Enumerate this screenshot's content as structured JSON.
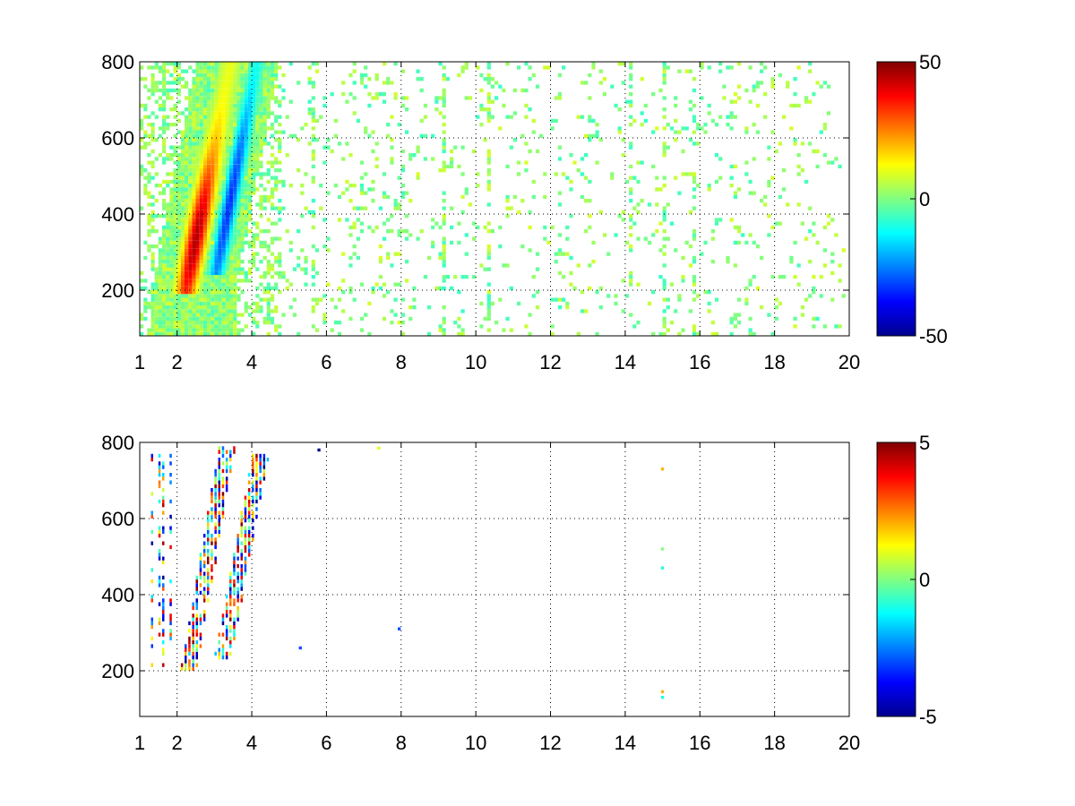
{
  "chart_data": [
    {
      "type": "heatmap",
      "title": "",
      "xlabel": "",
      "ylabel": "",
      "xlim": [
        1,
        20
      ],
      "ylim": [
        80,
        800
      ],
      "grid": true,
      "xticks": [
        "1",
        "2",
        "4",
        "6",
        "8",
        "10",
        "12",
        "14",
        "16",
        "18",
        "20"
      ],
      "yticks": [
        "200",
        "400",
        "600",
        "800"
      ],
      "colorbar": {
        "min": -50,
        "max": 50,
        "ticks": [
          "50",
          "0",
          "-50"
        ],
        "colormap": "jet"
      },
      "features": [
        {
          "kind": "positive-ridge",
          "x_at_bottom": 2.2,
          "x_at_top": 3.4,
          "y_range": [
            200,
            800
          ],
          "peak": 35
        },
        {
          "kind": "negative-ridge",
          "x_at_bottom": 3.0,
          "x_at_top": 4.1,
          "y_range": [
            240,
            800
          ],
          "peak": -25
        },
        {
          "kind": "sparse-speckle",
          "x_range": [
            4,
            20
          ],
          "magnitude": 8
        },
        {
          "kind": "vertical-streaks",
          "x_values": [
            1.3,
            1.6,
            1.9,
            5.6,
            9.1,
            10.3,
            14.1,
            15.0,
            15.8
          ],
          "magnitude": 6
        }
      ]
    },
    {
      "type": "heatmap",
      "title": "",
      "xlabel": "",
      "ylabel": "",
      "xlim": [
        1,
        20
      ],
      "ylim": [
        80,
        800
      ],
      "grid": true,
      "xticks": [
        "1",
        "2",
        "4",
        "6",
        "8",
        "10",
        "12",
        "14",
        "16",
        "18",
        "20"
      ],
      "yticks": [
        "200",
        "400",
        "600",
        "800"
      ],
      "colorbar": {
        "min": -5,
        "max": 5,
        "ticks": [
          "5",
          "0",
          "-5"
        ],
        "colormap": "jet"
      },
      "features": [
        {
          "kind": "band-left",
          "x_at_bottom": 2.3,
          "x_at_top": 3.3,
          "y_range": [
            200,
            780
          ],
          "mixed_sign": true
        },
        {
          "kind": "band-right",
          "x_at_bottom": 3.2,
          "x_at_top": 4.2,
          "y_range": [
            230,
            760
          ],
          "mixed_sign": true
        },
        {
          "kind": "isolated-points",
          "points": [
            [
              15.0,
              730,
              2
            ],
            [
              15.0,
              520,
              0
            ],
            [
              15.0,
              470,
              -1
            ],
            [
              15.0,
              145,
              2
            ],
            [
              15.0,
              130,
              -1
            ],
            [
              7.4,
              785,
              1
            ],
            [
              7.95,
              310,
              -3
            ],
            [
              5.8,
              780,
              -5
            ],
            [
              5.3,
              260,
              -3
            ]
          ]
        },
        {
          "kind": "left-streaks",
          "x_values": [
            1.3,
            1.5,
            1.6,
            1.8
          ],
          "y_range": [
            200,
            760
          ]
        }
      ]
    }
  ]
}
